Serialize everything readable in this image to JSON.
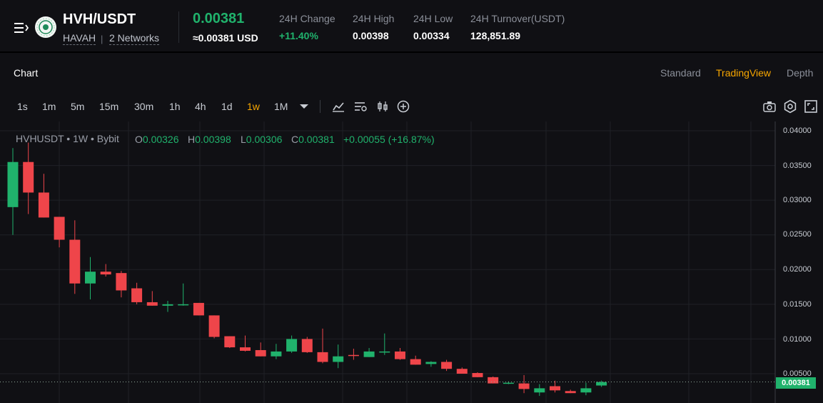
{
  "header": {
    "pair": "HVH/USDT",
    "coin": "HAVAH",
    "separator": "|",
    "networks": "2 Networks",
    "last_price": "0.00381",
    "usd_price": "≈0.00381 USD",
    "stats": [
      {
        "label": "24H Change",
        "value": "+11.40%"
      },
      {
        "label": "24H High",
        "value": "0.00398"
      },
      {
        "label": "24H Low",
        "value": "0.00334"
      },
      {
        "label": "24H Turnover(USDT)",
        "value": "128,851.89"
      }
    ]
  },
  "section": {
    "chart_tab": "Chart",
    "views": [
      "Standard",
      "TradingView",
      "Depth"
    ],
    "active_view": "TradingView"
  },
  "timeframes": [
    "1s",
    "1m",
    "5m",
    "15m",
    "30m",
    "1h",
    "4h",
    "1d",
    "1w",
    "1M"
  ],
  "active_timeframe": "1w",
  "legend": {
    "title": "HVHUSDT • 1W • Bybit",
    "o_label": "O",
    "o": "0.00326",
    "h_label": "H",
    "h": "0.00398",
    "l_label": "L",
    "l": "0.00306",
    "c_label": "C",
    "c": "0.00381",
    "change": "+0.00055 (+16.87%)"
  },
  "colors": {
    "up": "#20b26c",
    "down": "#ef454a",
    "accent": "#f7a600",
    "background": "#101014"
  },
  "chart_data": {
    "type": "candlestick",
    "yticks": [
      "0.04000",
      "0.03500",
      "0.03000",
      "0.02500",
      "0.02000",
      "0.01500",
      "0.01000",
      "0.00500"
    ],
    "ylim": [
      0.0016,
      0.041
    ],
    "last_price_label": "0.00381",
    "candles": [
      {
        "o": 0.029,
        "h": 0.0375,
        "l": 0.025,
        "c": 0.0355
      },
      {
        "o": 0.0355,
        "h": 0.0383,
        "l": 0.028,
        "c": 0.0311
      },
      {
        "o": 0.0311,
        "h": 0.0338,
        "l": 0.0275,
        "c": 0.0275
      },
      {
        "o": 0.0276,
        "h": 0.0276,
        "l": 0.0232,
        "c": 0.0243
      },
      {
        "o": 0.0243,
        "h": 0.0271,
        "l": 0.0165,
        "c": 0.018
      },
      {
        "o": 0.018,
        "h": 0.0218,
        "l": 0.0157,
        "c": 0.0197
      },
      {
        "o": 0.0197,
        "h": 0.0208,
        "l": 0.019,
        "c": 0.0193
      },
      {
        "o": 0.0195,
        "h": 0.0198,
        "l": 0.016,
        "c": 0.017
      },
      {
        "o": 0.0173,
        "h": 0.0181,
        "l": 0.015,
        "c": 0.0153
      },
      {
        "o": 0.0153,
        "h": 0.0169,
        "l": 0.0148,
        "c": 0.0148
      },
      {
        "o": 0.0148,
        "h": 0.0155,
        "l": 0.0139,
        "c": 0.015
      },
      {
        "o": 0.015,
        "h": 0.018,
        "l": 0.0148,
        "c": 0.015
      },
      {
        "o": 0.0152,
        "h": 0.0152,
        "l": 0.0134,
        "c": 0.0134
      },
      {
        "o": 0.0134,
        "h": 0.0134,
        "l": 0.0101,
        "c": 0.0103
      },
      {
        "o": 0.0104,
        "h": 0.0104,
        "l": 0.0087,
        "c": 0.0088
      },
      {
        "o": 0.0088,
        "h": 0.0105,
        "l": 0.0082,
        "c": 0.0083
      },
      {
        "o": 0.0084,
        "h": 0.0095,
        "l": 0.0075,
        "c": 0.0075
      },
      {
        "o": 0.0075,
        "h": 0.0093,
        "l": 0.0071,
        "c": 0.0082
      },
      {
        "o": 0.0082,
        "h": 0.0105,
        "l": 0.008,
        "c": 0.01
      },
      {
        "o": 0.01,
        "h": 0.0103,
        "l": 0.008,
        "c": 0.0081
      },
      {
        "o": 0.0081,
        "h": 0.0115,
        "l": 0.0065,
        "c": 0.0067
      },
      {
        "o": 0.0067,
        "h": 0.0092,
        "l": 0.0058,
        "c": 0.0075
      },
      {
        "o": 0.0077,
        "h": 0.0086,
        "l": 0.007,
        "c": 0.0076
      },
      {
        "o": 0.0074,
        "h": 0.0087,
        "l": 0.0074,
        "c": 0.0082
      },
      {
        "o": 0.0081,
        "h": 0.0108,
        "l": 0.0077,
        "c": 0.0082
      },
      {
        "o": 0.0082,
        "h": 0.0087,
        "l": 0.007,
        "c": 0.0071
      },
      {
        "o": 0.0071,
        "h": 0.0076,
        "l": 0.0063,
        "c": 0.0063
      },
      {
        "o": 0.0064,
        "h": 0.0068,
        "l": 0.006,
        "c": 0.0067
      },
      {
        "o": 0.0067,
        "h": 0.007,
        "l": 0.0054,
        "c": 0.0057
      },
      {
        "o": 0.0057,
        "h": 0.0059,
        "l": 0.005,
        "c": 0.005
      },
      {
        "o": 0.0051,
        "h": 0.0052,
        "l": 0.0045,
        "c": 0.0045
      },
      {
        "o": 0.0045,
        "h": 0.0046,
        "l": 0.0036,
        "c": 0.0036
      },
      {
        "o": 0.0036,
        "h": 0.0039,
        "l": 0.0035,
        "c": 0.0037
      },
      {
        "o": 0.0036,
        "h": 0.0048,
        "l": 0.0022,
        "c": 0.0028
      },
      {
        "o": 0.0023,
        "h": 0.0035,
        "l": 0.0018,
        "c": 0.0029
      },
      {
        "o": 0.0032,
        "h": 0.004,
        "l": 0.0023,
        "c": 0.0026
      },
      {
        "o": 0.0025,
        "h": 0.0027,
        "l": 0.0022,
        "c": 0.0022
      },
      {
        "o": 0.0023,
        "h": 0.0037,
        "l": 0.0019,
        "c": 0.0029
      },
      {
        "o": 0.0033,
        "h": 0.004,
        "l": 0.0031,
        "c": 0.0038
      }
    ]
  }
}
